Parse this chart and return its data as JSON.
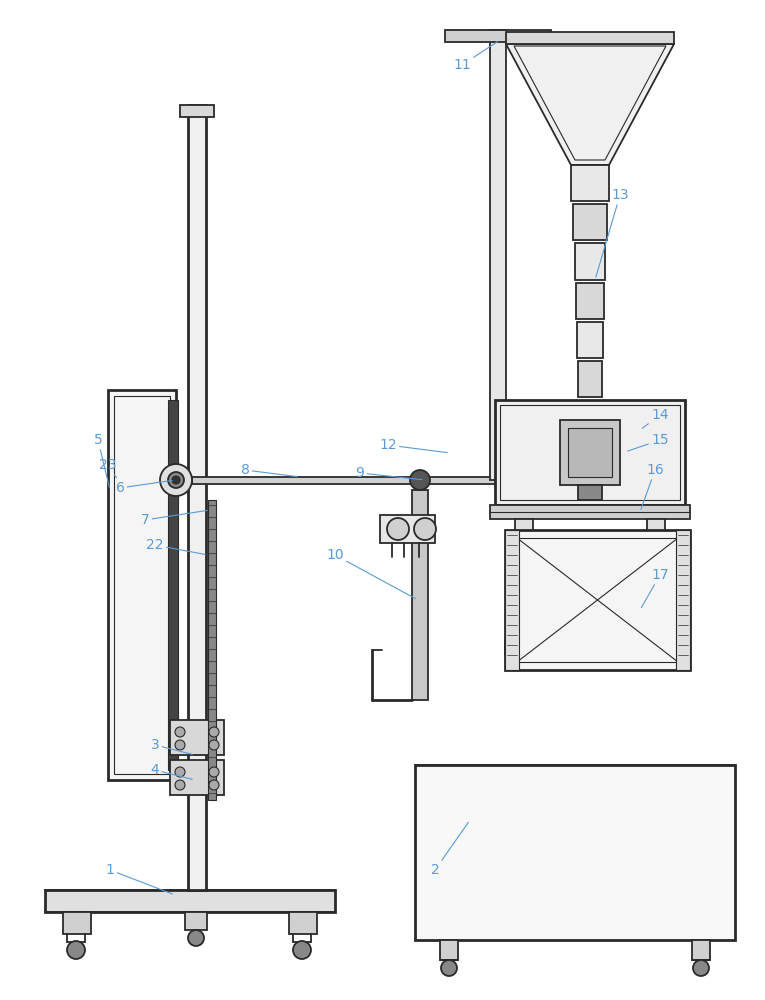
{
  "bg_color": "#ffffff",
  "line_color": "#2a2a2a",
  "label_color": "#5b9bd5",
  "label_fontsize": 10,
  "lw_thin": 0.8,
  "lw_med": 1.3,
  "lw_thick": 2.0
}
